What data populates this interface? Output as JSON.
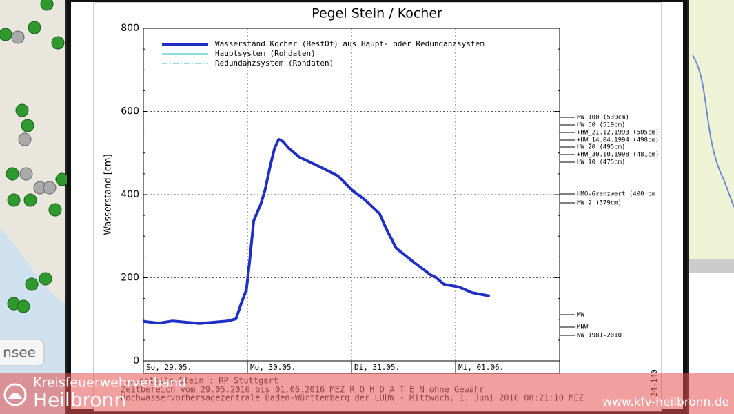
{
  "chart_data": {
    "type": "line",
    "title": "Pegel Stein / Kocher",
    "ylabel": "Wasserstand [cm]",
    "x": [
      0,
      0.15,
      0.28,
      0.54,
      0.81,
      0.89,
      0.94,
      0.99,
      1.02,
      1.06,
      1.13,
      1.17,
      1.22,
      1.26,
      1.3,
      1.34,
      1.4,
      1.5,
      1.67,
      1.87,
      2.0,
      2.13,
      2.27,
      2.33,
      2.43,
      2.6,
      2.76,
      2.81,
      2.89,
      3.03,
      3.16,
      3.33
    ],
    "series": [
      {
        "name": "Wasserstand Kocher  (BestOf) aus Haupt- oder Redundanzsystem",
        "color": "#1f2fc4",
        "style": "solid",
        "values": [
          95,
          91,
          96,
          90,
          96,
          101,
          138,
          171,
          237,
          337,
          378,
          412,
          470,
          511,
          533,
          528,
          511,
          490,
          470,
          445,
          412,
          387,
          354,
          320,
          271,
          237,
          207,
          201,
          184,
          178,
          164,
          156
        ]
      },
      {
        "name": "Hauptsystem (Rohdaten)",
        "color": "#20b8c8",
        "style": "solid",
        "values": [
          null,
          null,
          null,
          null,
          null,
          null,
          null,
          null,
          null,
          null,
          null,
          null,
          null,
          null,
          null,
          null,
          null,
          null,
          null,
          null,
          null,
          null,
          null,
          null,
          null,
          null,
          null,
          null,
          null,
          null,
          null,
          null
        ]
      },
      {
        "name": "Redundanzsystem (Rohdaten)",
        "color": "#20b8c8",
        "style": "dashdot",
        "values": [
          null,
          null,
          null,
          null,
          null,
          null,
          null,
          null,
          null,
          null,
          null,
          null,
          null,
          null,
          null,
          null,
          null,
          null,
          null,
          null,
          null,
          null,
          null,
          null,
          null,
          null,
          null,
          null,
          null,
          null,
          null,
          null
        ]
      }
    ],
    "xlim": [
      0,
      4
    ],
    "xticks": [
      {
        "value": 0,
        "label": "So, 29.05."
      },
      {
        "value": 1,
        "label": "Mo, 30.05."
      },
      {
        "value": 2,
        "label": "Di, 31.05."
      },
      {
        "value": 3,
        "label": "Mi, 01.06."
      }
    ],
    "ylim": [
      0,
      800
    ],
    "yticks": [
      0,
      200,
      400,
      600,
      800
    ],
    "grid": true,
    "threshold_labels": [
      "HW 100 (539cm)",
      "HW 50 (519cm)",
      "+HW_21.12.1993 (505cm)",
      "+HW_14.04.1994 (498cm)",
      "HW 20 (495cm)",
      "+HW_30.10.1998 (481cm)",
      "HW 10 (475cm)",
      "HMO-Grenzwert (400 cm",
      "HW 2 (379cm)",
      "MW",
      "MNW",
      "NW 1981-2010"
    ],
    "footer": [
      "...sstelle Stein : RP Stuttgart",
      "Zeitbereich vom 29.05.2016 bis 01.06.2016    MEZ     R O H D A T E N ohne Gewähr",
      "Hochwasservorhersagezentrale Baden-Württemberg der LUBW - Mittwoch, 1. Juni 2016 08:21:10 MEZ"
    ],
    "side_code": "24-140"
  },
  "overlay": {
    "org_line1": "Kreisfeuerwehrverband",
    "org_line2": "Heilbronn",
    "url": "www.kfv-heilbronn.de"
  },
  "map_button": "nsee"
}
